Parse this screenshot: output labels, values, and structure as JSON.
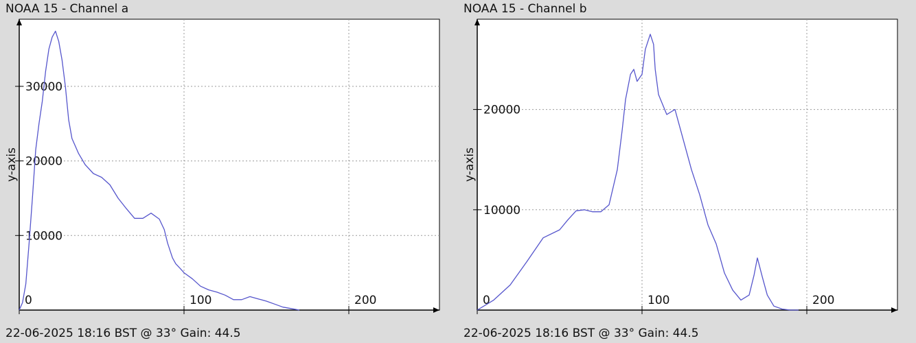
{
  "chart_data": [
    {
      "type": "line",
      "title": "NOAA 15 - Channel a",
      "caption": "22-06-2025 18:16 BST @ 33° Gain: 44.5",
      "ylabel": "y-axis",
      "xlim": [
        0,
        255
      ],
      "ylim": [
        0,
        39000
      ],
      "xticks": [
        0,
        100,
        200
      ],
      "yticks": [
        10000,
        20000,
        30000
      ],
      "grid": true,
      "series_color": "#5555cc",
      "x": [
        0,
        2,
        4,
        6,
        8,
        10,
        12,
        14,
        16,
        18,
        20,
        22,
        24,
        26,
        28,
        30,
        32,
        34,
        36,
        40,
        45,
        50,
        55,
        60,
        65,
        70,
        75,
        80,
        85,
        88,
        90,
        93,
        95,
        98,
        100,
        105,
        110,
        115,
        120,
        125,
        130,
        135,
        140,
        145,
        150,
        155,
        160,
        165,
        170
      ],
      "y": [
        0,
        1000,
        3500,
        9000,
        15000,
        21500,
        25000,
        28000,
        32000,
        35000,
        36600,
        37400,
        36000,
        33500,
        30000,
        25500,
        23000,
        22000,
        21000,
        19500,
        18300,
        17800,
        16800,
        15000,
        13600,
        12300,
        12300,
        13000,
        12200,
        10800,
        9000,
        7000,
        6200,
        5500,
        5000,
        4200,
        3200,
        2700,
        2400,
        2000,
        1400,
        1400,
        1800,
        1500,
        1200,
        800,
        400,
        200,
        0
      ]
    },
    {
      "type": "line",
      "title": "NOAA 15 - Channel b",
      "caption": "22-06-2025 18:16 BST @ 33° Gain: 44.5",
      "ylabel": "y-axis",
      "xlim": [
        0,
        255
      ],
      "ylim": [
        0,
        29000
      ],
      "xticks": [
        0,
        100,
        200
      ],
      "yticks": [
        10000,
        20000
      ],
      "grid": true,
      "series_color": "#5555cc",
      "x": [
        0,
        10,
        20,
        30,
        40,
        50,
        55,
        60,
        65,
        70,
        75,
        80,
        85,
        88,
        90,
        93,
        95,
        97,
        100,
        102,
        105,
        107,
        108,
        110,
        115,
        118,
        120,
        125,
        130,
        135,
        140,
        145,
        150,
        155,
        160,
        165,
        168,
        170,
        173,
        176,
        180,
        185,
        190,
        195
      ],
      "y": [
        0,
        1000,
        2500,
        4800,
        7200,
        8000,
        9000,
        9900,
        10000,
        9800,
        9800,
        10500,
        14000,
        18000,
        21000,
        23500,
        24000,
        22800,
        23500,
        26000,
        27500,
        26500,
        24000,
        21500,
        19500,
        19800,
        20000,
        17000,
        14000,
        11500,
        8500,
        6600,
        3700,
        2000,
        1000,
        1500,
        3500,
        5200,
        3300,
        1500,
        400,
        100,
        0,
        0
      ]
    }
  ]
}
